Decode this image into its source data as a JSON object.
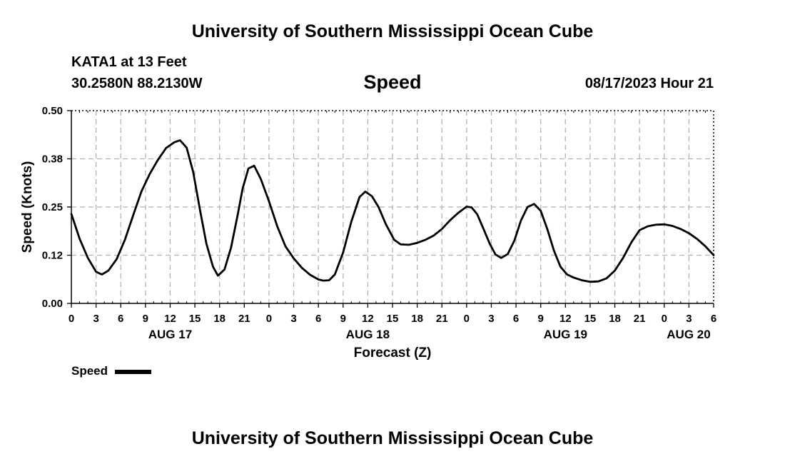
{
  "header": {
    "title": "University of Southern Mississippi Ocean Cube",
    "station": "KATA1 at 13 Feet",
    "coordinates": "30.2580N  88.2130W",
    "variable": "Speed",
    "datetime": "08/17/2023 Hour 21"
  },
  "footer": {
    "title": "University of Southern Mississippi Ocean Cube"
  },
  "legend": {
    "label": "Speed"
  },
  "colors": {
    "line": "#000000",
    "grid": "#b3b3b3",
    "axis": "#000000"
  },
  "chart_data": {
    "type": "line",
    "title": "Speed",
    "xlabel": "Forecast (Z)",
    "ylabel": "Speed (Knots)",
    "xlim": [
      0,
      78
    ],
    "ylim": [
      0,
      0.5
    ],
    "yticks": [
      0.0,
      0.125,
      0.25,
      0.375,
      0.5
    ],
    "ytick_labels": [
      "0.00",
      "0.12",
      "0.25",
      "0.38",
      "0.50"
    ],
    "xticks": [
      0,
      3,
      6,
      9,
      12,
      15,
      18,
      21,
      24,
      27,
      30,
      33,
      36,
      39,
      42,
      45,
      48,
      51,
      54,
      57,
      60,
      63,
      66,
      69,
      72,
      75,
      78
    ],
    "xtick_labels": [
      "0",
      "3",
      "6",
      "9",
      "12",
      "15",
      "18",
      "21",
      "0",
      "3",
      "6",
      "9",
      "12",
      "15",
      "18",
      "21",
      "0",
      "3",
      "6",
      "9",
      "12",
      "15",
      "18",
      "21",
      "0",
      "3",
      "6"
    ],
    "date_labels": [
      {
        "x": 12,
        "label": "AUG 17"
      },
      {
        "x": 36,
        "label": "AUG 18"
      },
      {
        "x": 60,
        "label": "AUG 19"
      },
      {
        "x": 78,
        "label": "AUG 20"
      }
    ],
    "grid": true,
    "series": [
      {
        "name": "Speed",
        "points": [
          [
            0,
            0.232
          ],
          [
            1,
            0.168
          ],
          [
            2,
            0.118
          ],
          [
            3,
            0.082
          ],
          [
            3.7,
            0.075
          ],
          [
            4.5,
            0.085
          ],
          [
            5.5,
            0.115
          ],
          [
            6.5,
            0.165
          ],
          [
            7.5,
            0.228
          ],
          [
            8.5,
            0.29
          ],
          [
            9.5,
            0.335
          ],
          [
            10.5,
            0.372
          ],
          [
            11.5,
            0.403
          ],
          [
            12.5,
            0.418
          ],
          [
            13.2,
            0.423
          ],
          [
            14,
            0.404
          ],
          [
            14.8,
            0.34
          ],
          [
            15.6,
            0.245
          ],
          [
            16.4,
            0.155
          ],
          [
            17.2,
            0.095
          ],
          [
            17.8,
            0.072
          ],
          [
            18.6,
            0.088
          ],
          [
            19.4,
            0.145
          ],
          [
            20.2,
            0.23
          ],
          [
            20.8,
            0.298
          ],
          [
            21.5,
            0.35
          ],
          [
            22.2,
            0.357
          ],
          [
            23,
            0.323
          ],
          [
            24,
            0.265
          ],
          [
            25,
            0.2
          ],
          [
            26,
            0.148
          ],
          [
            27,
            0.117
          ],
          [
            28,
            0.092
          ],
          [
            29,
            0.074
          ],
          [
            30,
            0.062
          ],
          [
            30.6,
            0.059
          ],
          [
            31.3,
            0.06
          ],
          [
            32,
            0.075
          ],
          [
            33,
            0.132
          ],
          [
            34,
            0.212
          ],
          [
            35,
            0.276
          ],
          [
            35.7,
            0.29
          ],
          [
            36.5,
            0.278
          ],
          [
            37.3,
            0.25
          ],
          [
            38.2,
            0.205
          ],
          [
            39.2,
            0.165
          ],
          [
            40,
            0.153
          ],
          [
            41,
            0.152
          ],
          [
            42,
            0.157
          ],
          [
            43,
            0.165
          ],
          [
            44,
            0.176
          ],
          [
            45,
            0.193
          ],
          [
            46,
            0.216
          ],
          [
            47,
            0.235
          ],
          [
            48,
            0.251
          ],
          [
            48.6,
            0.249
          ],
          [
            49.3,
            0.231
          ],
          [
            50,
            0.196
          ],
          [
            50.8,
            0.155
          ],
          [
            51.5,
            0.127
          ],
          [
            52.2,
            0.118
          ],
          [
            53,
            0.128
          ],
          [
            53.8,
            0.163
          ],
          [
            54.6,
            0.215
          ],
          [
            55.4,
            0.25
          ],
          [
            56.2,
            0.258
          ],
          [
            57,
            0.24
          ],
          [
            57.8,
            0.193
          ],
          [
            58.6,
            0.137
          ],
          [
            59.4,
            0.095
          ],
          [
            60.2,
            0.075
          ],
          [
            61,
            0.067
          ],
          [
            62,
            0.06
          ],
          [
            63,
            0.056
          ],
          [
            64,
            0.057
          ],
          [
            65,
            0.065
          ],
          [
            66,
            0.085
          ],
          [
            67,
            0.118
          ],
          [
            68,
            0.158
          ],
          [
            69,
            0.19
          ],
          [
            70,
            0.2
          ],
          [
            71,
            0.204
          ],
          [
            72,
            0.205
          ],
          [
            73,
            0.201
          ],
          [
            74,
            0.193
          ],
          [
            75,
            0.182
          ],
          [
            76,
            0.167
          ],
          [
            77,
            0.148
          ],
          [
            78,
            0.125
          ]
        ]
      }
    ]
  }
}
